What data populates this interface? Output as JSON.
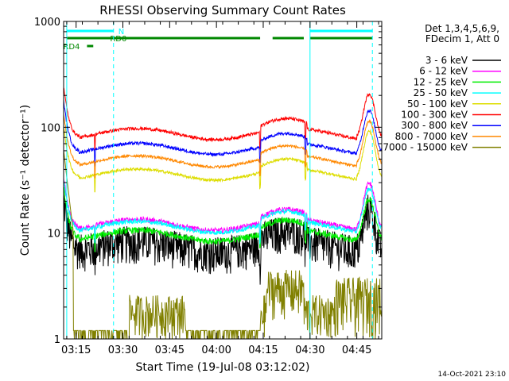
{
  "chart_data": {
    "type": "line",
    "title": "RHESSI Observing Summary Count Rates",
    "xlabel": "Start Time (19-Jul-08 03:12:02)",
    "ylabel": "Count Rate (s⁻¹ detector⁻¹)",
    "y_scale": "log",
    "ylim": [
      1,
      1000
    ],
    "xlim_minutes": [
      -1,
      101
    ],
    "x_ticks": [
      {
        "t": 3,
        "label": "03:15"
      },
      {
        "t": 18,
        "label": "03:30"
      },
      {
        "t": 33,
        "label": "03:45"
      },
      {
        "t": 48,
        "label": "04:00"
      },
      {
        "t": 63,
        "label": "04:15"
      },
      {
        "t": 78,
        "label": "04:30"
      },
      {
        "t": 93,
        "label": "04:45"
      }
    ],
    "y_ticks": [
      {
        "v": 1,
        "label": "1"
      },
      {
        "v": 10,
        "label": "10"
      },
      {
        "v": 100,
        "label": "100"
      },
      {
        "v": 1000,
        "label": "1000"
      }
    ],
    "legend_header": [
      "Det 1,3,4,5,6,9,",
      "FDecim 1, Att 0"
    ],
    "legend_position": "right",
    "series": [
      {
        "name": "3 - 6 keV",
        "color": "#000000",
        "base": 7.5,
        "bump": 1.6,
        "noise": 0.2,
        "min": 4.5
      },
      {
        "name": "6 - 12 keV",
        "color": "#ff00ff",
        "base": 12.0,
        "bump": 1.8,
        "noise": 0.06
      },
      {
        "name": "12 - 25 keV",
        "color": "#00ee00",
        "base": 9.5,
        "bump": 1.5,
        "noise": 0.07
      },
      {
        "name": "25 - 50 keV",
        "color": "#00ffff",
        "base": 11.5,
        "bump": 1.6,
        "noise": 0.05
      },
      {
        "name": "50 - 100 keV",
        "color": "#dddd00",
        "base": 36.0,
        "bump": 1.9,
        "noise": 0.03
      },
      {
        "name": "100 - 300 keV",
        "color": "#ff0000",
        "base": 87.0,
        "bump": 1.7,
        "noise": 0.035
      },
      {
        "name": "300 - 800 keV",
        "color": "#0000ff",
        "base": 63.0,
        "bump": 1.6,
        "noise": 0.035
      },
      {
        "name": "800 - 7000 keV",
        "color": "#ff8800",
        "base": 48.0,
        "bump": 1.7,
        "noise": 0.03
      },
      {
        "name": "7000 - 15000 keV",
        "color": "#808000",
        "base": 1.6,
        "bump": 1.0,
        "noise": 0.0
      }
    ],
    "flags": [
      {
        "label": "N",
        "color": "#00ffff",
        "segments": [
          [
            0,
            15
          ],
          [
            78,
            98
          ]
        ]
      },
      {
        "label": "RD0",
        "color": "#008800",
        "segments": [
          [
            0,
            62
          ],
          [
            66,
            76
          ],
          [
            78,
            98
          ]
        ]
      },
      {
        "label": "RD4",
        "color": "#008800",
        "segments": [
          [
            6.5,
            8.5
          ]
        ]
      }
    ],
    "vertical_lines": [
      {
        "t": 0,
        "style": "solid"
      },
      {
        "t": 15,
        "style": "dashed"
      },
      {
        "t": 78,
        "style": "solid"
      },
      {
        "t": 98,
        "style": "dashed"
      }
    ],
    "segment_breaks": [
      9,
      62,
      76.5
    ]
  },
  "footer": {
    "date": "14-Oct-2021 23:10"
  }
}
